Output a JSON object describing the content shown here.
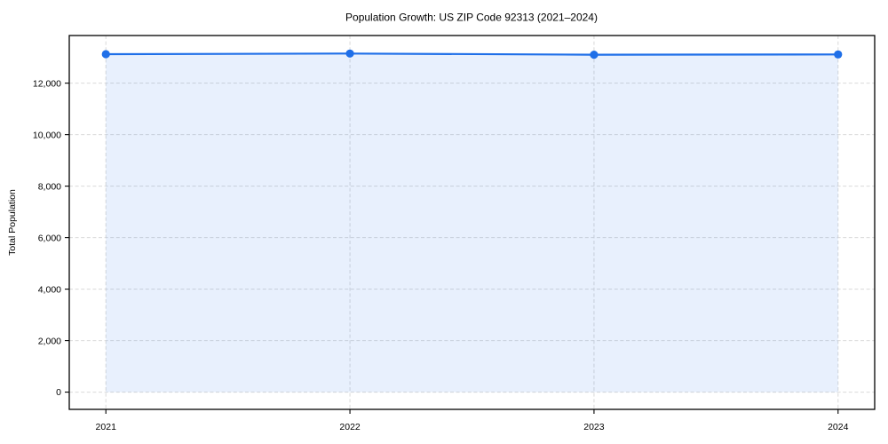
{
  "chart_data": {
    "type": "line",
    "title": "Population Growth: US ZIP Code 92313 (2021–2024)",
    "xlabel": "",
    "ylabel": "Total Population",
    "x": [
      2021,
      2022,
      2023,
      2024
    ],
    "series": [
      {
        "name": "Total Population",
        "values": [
          13125,
          13150,
          13105,
          13115
        ],
        "color": "#1f6fe8",
        "marker": "circle",
        "area_fill": true,
        "fill_baseline": 0,
        "fill_opacity": 0.1
      }
    ],
    "xticks": {
      "values": [
        2021,
        2022,
        2023,
        2024
      ],
      "labels": [
        "2021",
        "2022",
        "2023",
        "2024"
      ]
    },
    "yticks": {
      "values": [
        0,
        2000,
        4000,
        6000,
        8000,
        10000,
        12000
      ],
      "labels": [
        "0",
        "2,000",
        "4,000",
        "6,000",
        "8,000",
        "10,000",
        "12,000"
      ]
    },
    "xlim": [
      2020.85,
      2024.15
    ],
    "ylim": [
      -670,
      13850
    ],
    "grid": {
      "show": true,
      "style": "dashed",
      "color": "#d9d9d9"
    },
    "legend_position": "none",
    "axis_color": "#000000",
    "text_color": "#000000",
    "background": "#ffffff"
  }
}
